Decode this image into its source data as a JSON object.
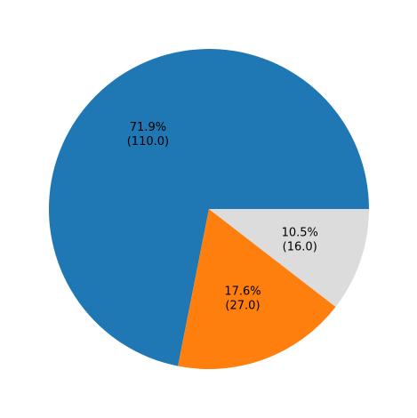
{
  "chart_data": {
    "type": "pie",
    "title": "",
    "slices": [
      {
        "value": 110.0,
        "percent": 71.9,
        "color": "#1f77b4",
        "pct_label": "71.9%",
        "value_label": "(110.0)"
      },
      {
        "value": 27.0,
        "percent": 17.6,
        "color": "#ff7f0e",
        "pct_label": "17.6%",
        "value_label": "(27.0)"
      },
      {
        "value": 16.0,
        "percent": 10.5,
        "color": "#dcdcdc",
        "pct_label": "10.5%",
        "value_label": "(16.0)"
      }
    ],
    "start_angle_deg": 0,
    "direction": "counterclockwise",
    "legend": "none"
  }
}
